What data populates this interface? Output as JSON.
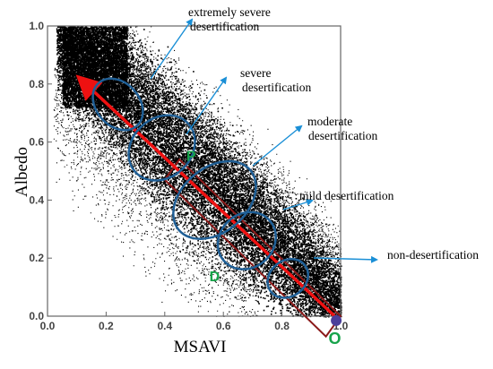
{
  "chart_data": {
    "type": "scatter",
    "title": "",
    "xlabel": "MSAVI",
    "ylabel": "Albedo",
    "xlim": [
      0,
      1
    ],
    "ylim": [
      0,
      1
    ],
    "x_ticks": [
      "0.0",
      "0.2",
      "0.4",
      "0.6",
      "0.8",
      "1.0"
    ],
    "y_ticks": [
      "0.0",
      "0.2",
      "0.4",
      "0.6",
      "0.8",
      "1.0"
    ],
    "grid": false,
    "point_color": "#000000",
    "point_cloud": {
      "description_of_trend": "dense cloud decreasing from high albedo at low MSAVI to low albedo at high MSAVI",
      "upper_edge": [
        [
          0.05,
          1.0
        ],
        [
          0.2,
          1.0
        ],
        [
          0.4,
          0.78
        ],
        [
          0.6,
          0.58
        ],
        [
          0.8,
          0.42
        ],
        [
          1.0,
          0.28
        ]
      ],
      "core_ridge": [
        [
          0.1,
          0.9
        ],
        [
          0.3,
          0.72
        ],
        [
          0.5,
          0.5
        ],
        [
          0.7,
          0.3
        ],
        [
          0.9,
          0.08
        ]
      ]
    },
    "trend_line": {
      "from": [
        0.98,
        0.0
      ],
      "to": [
        0.12,
        0.81
      ],
      "color": "#ee1111"
    },
    "feature_space_box": {
      "color": "#8b1a1a",
      "corners": [
        [
          0.4,
          0.47
        ],
        [
          0.45,
          0.54
        ],
        [
          1.0,
          0.0
        ],
        [
          0.95,
          -0.07
        ]
      ]
    },
    "point_labels": [
      {
        "text": "P",
        "x": 0.49,
        "y": 0.535,
        "color": "#17a34a"
      },
      {
        "text": "D",
        "x": 0.57,
        "y": 0.12,
        "color": "#17a34a"
      },
      {
        "text": "O",
        "x": 0.98,
        "y": -0.095,
        "color": "#17a34a"
      }
    ],
    "origin_marker": {
      "x": 0.985,
      "y": -0.015,
      "color": "#4a3f9a"
    },
    "classes": [
      {
        "name": "extremely severe",
        "line2": "desertification",
        "color": "#1f5f96",
        "ellipse": {
          "cx": 0.24,
          "cy": 0.73
        }
      },
      {
        "name": "severe",
        "line2": "desertification",
        "color": "#1f5f96",
        "ellipse": {
          "cx": 0.39,
          "cy": 0.58
        }
      },
      {
        "name": "moderate",
        "line2": "desertification",
        "color": "#1f5f96",
        "ellipse": {
          "cx": 0.57,
          "cy": 0.4
        }
      },
      {
        "name": "mild desertification",
        "line2": "",
        "color": "#1f5f96",
        "ellipse": {
          "cx": 0.68,
          "cy": 0.26
        }
      },
      {
        "name": "non-desertification",
        "line2": "",
        "color": "#1f5f96",
        "ellipse": {
          "cx": 0.82,
          "cy": 0.13
        }
      }
    ],
    "arrow_color": "#1a8fd6"
  }
}
